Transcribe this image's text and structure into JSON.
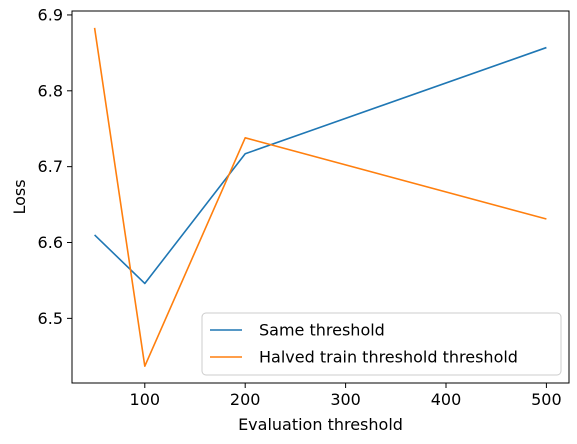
{
  "chart_data": {
    "type": "line",
    "title": "",
    "xlabel": "Evaluation threshold",
    "ylabel": "Loss",
    "x": [
      50,
      100,
      200,
      500
    ],
    "series": [
      {
        "name": "Same threshold",
        "color": "#1f77b4",
        "values": [
          6.61,
          6.546,
          6.717,
          6.857
        ]
      },
      {
        "name": "Halved train threshold threshold",
        "color": "#ff7f0e",
        "values": [
          6.883,
          6.437,
          6.738,
          6.631
        ]
      }
    ],
    "xlim": [
      27.5,
      522.5
    ],
    "ylim": [
      6.4148,
      6.9052
    ],
    "xticks": [
      "100",
      "200",
      "300",
      "400",
      "500"
    ],
    "xtick_values": [
      100,
      200,
      300,
      400,
      500
    ],
    "yticks": [
      "6.5",
      "6.6",
      "6.7",
      "6.8",
      "6.9"
    ],
    "ytick_values": [
      6.5,
      6.6,
      6.7,
      6.8,
      6.9
    ],
    "grid": false,
    "legend_position": "lower-right"
  }
}
